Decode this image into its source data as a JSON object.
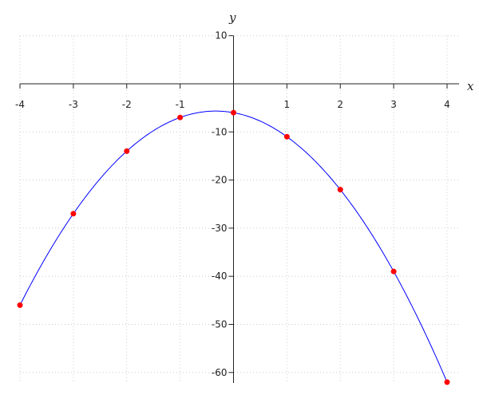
{
  "chart_data": {
    "type": "line",
    "title": "",
    "xlabel": "x",
    "ylabel": "y",
    "xlim": [
      -4,
      4
    ],
    "ylim": [
      -62,
      10
    ],
    "x_ticks": [
      -4,
      -3,
      -2,
      -1,
      1,
      2,
      3,
      4
    ],
    "y_ticks": [
      10,
      -10,
      -20,
      -30,
      -40,
      -50,
      -60
    ],
    "grid": true,
    "curve": {
      "formula": "y = -3x^2 - 2x - 6",
      "color": "#0000ff"
    },
    "points": {
      "x": [
        -4,
        -3,
        -2,
        -1,
        0,
        1,
        2,
        3,
        4
      ],
      "y": [
        -46,
        -27,
        -14,
        -7,
        -6,
        -11,
        -22,
        -39,
        -62
      ],
      "color": "#ff0000"
    }
  }
}
